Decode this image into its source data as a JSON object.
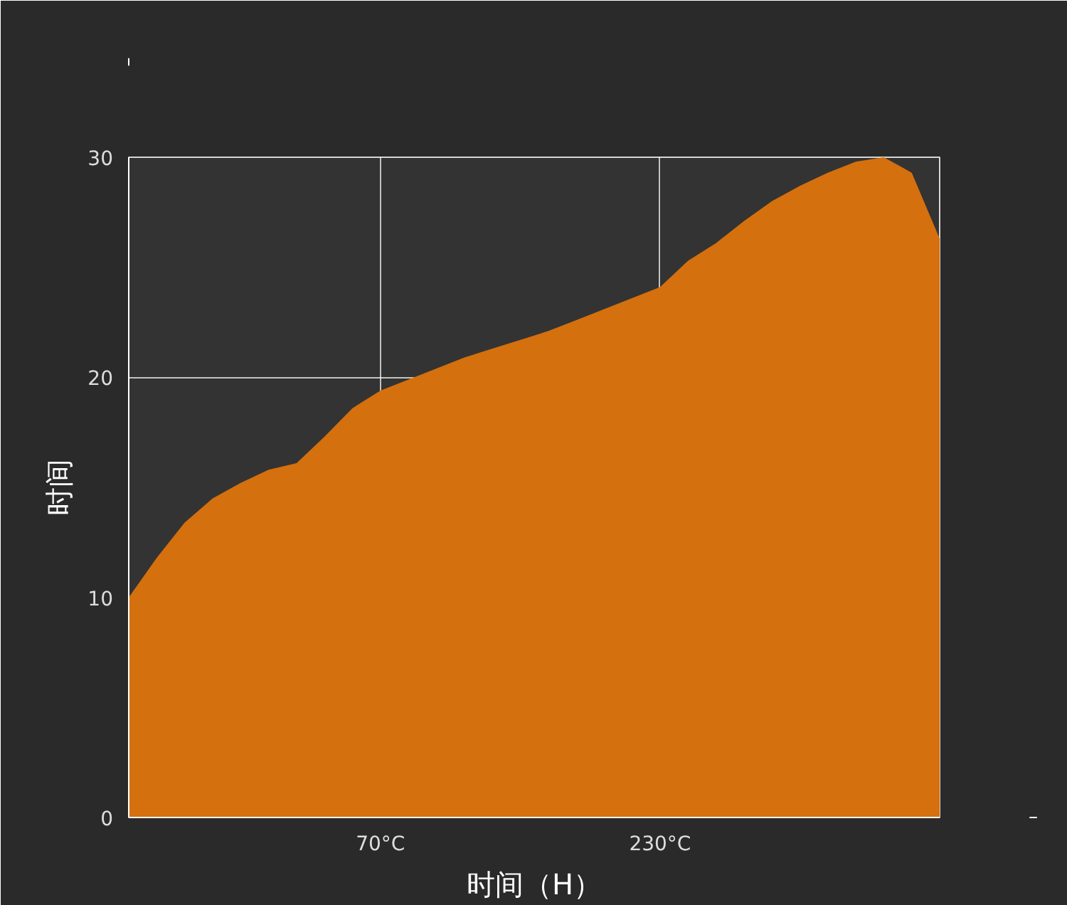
{
  "chart_data": {
    "type": "area",
    "ylabel": "时间",
    "xlabel": "时间（H）",
    "color": "#d4700e",
    "categories": [
      null,
      null,
      null,
      null,
      null,
      null,
      null,
      null,
      null,
      "70°C",
      null,
      null,
      null,
      null,
      null,
      null,
      null,
      null,
      null,
      "230°C",
      null,
      null,
      null,
      null,
      null,
      null,
      null,
      null,
      null,
      null
    ],
    "values": [
      10,
      11.8,
      13.4,
      14.5,
      15.2,
      15.8,
      16.1,
      17.3,
      18.6,
      19.4,
      19.9,
      20.4,
      20.9,
      21.3,
      21.7,
      22.1,
      22.6,
      23.1,
      23.6,
      24.1,
      25.3,
      26.1,
      27.1,
      28.0,
      28.7,
      29.3,
      29.8,
      30.0,
      29.3,
      26.3
    ],
    "ylim": [
      0,
      30
    ],
    "yticks": [
      0,
      10,
      20,
      30
    ],
    "grid": true
  }
}
